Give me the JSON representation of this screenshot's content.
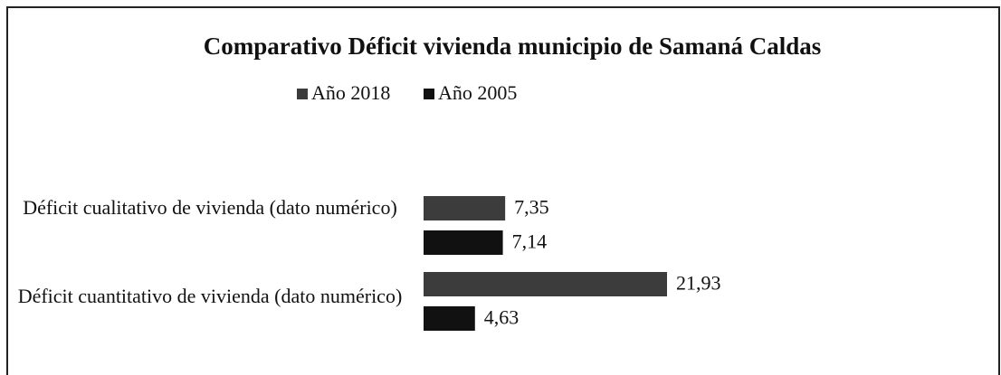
{
  "chart_data": {
    "type": "bar",
    "orientation": "horizontal",
    "title": "Comparativo Déficit vivienda municipio de Samaná Caldas",
    "categories": [
      "Déficit cualitativo de vivienda (dato numérico)",
      "Déficit cuantitativo de vivienda (dato numérico)"
    ],
    "series": [
      {
        "name": "Año 2018",
        "color": "#3c3c3c",
        "values": [
          7.35,
          21.93
        ],
        "value_labels": [
          "7,35",
          "21,93"
        ]
      },
      {
        "name": "Año 2005",
        "color": "#111111",
        "values": [
          7.14,
          4.63
        ],
        "value_labels": [
          "7,14",
          "4,63"
        ]
      }
    ],
    "legend": "top"
  }
}
